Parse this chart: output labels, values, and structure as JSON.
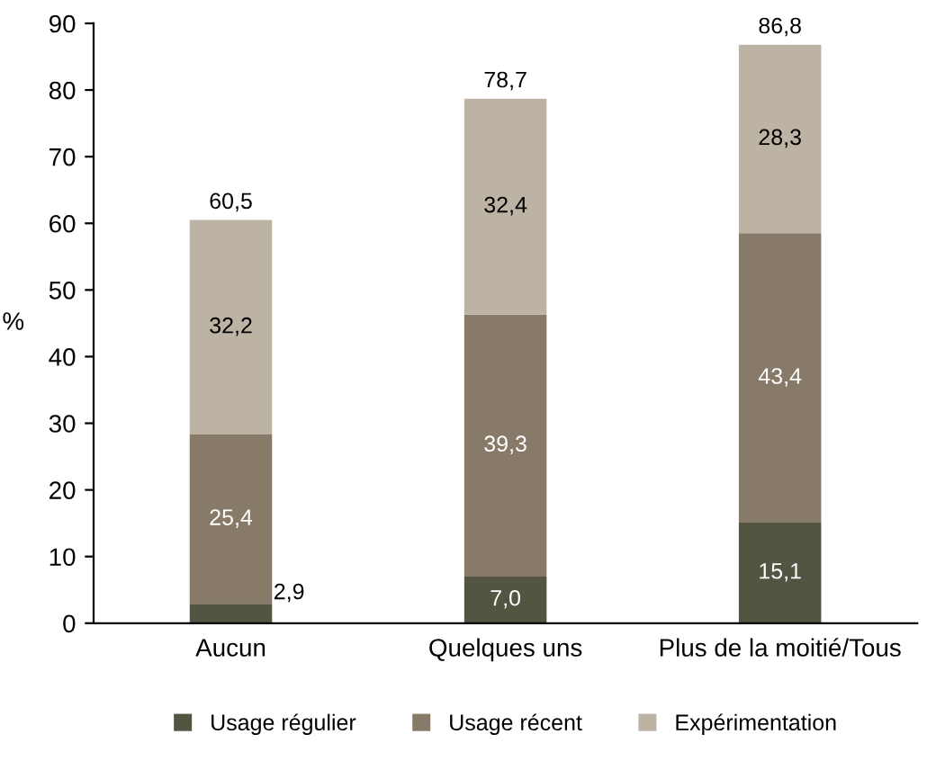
{
  "chart_data": {
    "type": "bar",
    "stacked": true,
    "ylabel": "%",
    "categories": [
      "Aucun",
      "Quelques uns",
      "Plus de la moitié/Tous"
    ],
    "series": [
      {
        "name": "Usage régulier",
        "color": "#545443",
        "values": [
          2.9,
          7.0,
          15.1
        ],
        "value_labels": [
          "2,9",
          "7,0",
          "15,1"
        ]
      },
      {
        "name": "Usage récent",
        "color": "#877a68",
        "values": [
          25.4,
          39.3,
          43.4
        ],
        "value_labels": [
          "25,4",
          "39,3",
          "43,4"
        ]
      },
      {
        "name": "Expérimentation",
        "color": "#bcb3a4",
        "values": [
          32.2,
          32.4,
          28.3
        ],
        "value_labels": [
          "32,2",
          "32,4",
          "28,3"
        ]
      }
    ],
    "totals": [
      "60,5",
      "78,7",
      "86,8"
    ],
    "ylim": [
      0,
      90
    ],
    "yticks": [
      0,
      10,
      20,
      30,
      40,
      50,
      60,
      70,
      80,
      90
    ],
    "grid": false,
    "legend": "bottom"
  }
}
